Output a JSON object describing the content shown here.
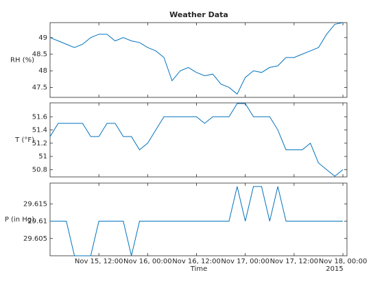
{
  "chart_data": {
    "type": "stackedline",
    "title": "Weather Data",
    "xlabel": "Time",
    "x_secondary_label": "2015",
    "x": [
      "2015-11-15 00:00",
      "2015-11-15 02:00",
      "2015-11-15 04:00",
      "2015-11-15 06:00",
      "2015-11-15 08:00",
      "2015-11-15 10:00",
      "2015-11-15 12:00",
      "2015-11-15 14:00",
      "2015-11-15 16:00",
      "2015-11-15 18:00",
      "2015-11-15 20:00",
      "2015-11-15 22:00",
      "2015-11-16 00:00",
      "2015-11-16 02:00",
      "2015-11-16 04:00",
      "2015-11-16 06:00",
      "2015-11-16 08:00",
      "2015-11-16 10:00",
      "2015-11-16 12:00",
      "2015-11-16 14:00",
      "2015-11-16 16:00",
      "2015-11-16 18:00",
      "2015-11-16 20:00",
      "2015-11-16 22:00",
      "2015-11-17 00:00",
      "2015-11-17 02:00",
      "2015-11-17 04:00",
      "2015-11-17 06:00",
      "2015-11-17 08:00",
      "2015-11-17 10:00",
      "2015-11-17 12:00",
      "2015-11-17 14:00",
      "2015-11-17 16:00",
      "2015-11-17 18:00",
      "2015-11-17 20:00",
      "2015-11-17 22:00",
      "2015-11-18 00:00"
    ],
    "xlim": [
      "2015-11-15 00:00",
      "2015-11-18 01:00"
    ],
    "xticks": [
      {
        "value": "2015-11-15 12:00",
        "label": "Nov 15, 12:00"
      },
      {
        "value": "2015-11-16 00:00",
        "label": "Nov 16, 00:00"
      },
      {
        "value": "2015-11-16 12:00",
        "label": "Nov 16, 12:00"
      },
      {
        "value": "2015-11-17 00:00",
        "label": "Nov 17, 00:00"
      },
      {
        "value": "2015-11-17 12:00",
        "label": "Nov 17, 12:00"
      },
      {
        "value": "2015-11-18 00:00",
        "label": "Nov 18, 00:00"
      }
    ],
    "series": [
      {
        "name": "RH (%)",
        "color": "#0072bd",
        "ylim": [
          47.2,
          49.45
        ],
        "yticks": [
          47.5,
          48,
          48.5,
          49
        ],
        "values": [
          49.0,
          48.9,
          48.8,
          48.7,
          48.8,
          49.0,
          49.1,
          49.1,
          48.9,
          49.0,
          48.9,
          48.85,
          48.7,
          48.6,
          48.4,
          47.7,
          48.0,
          48.1,
          47.95,
          47.85,
          47.9,
          47.6,
          47.5,
          47.3,
          47.8,
          48.0,
          47.95,
          48.1,
          48.15,
          48.4,
          48.4,
          48.5,
          48.6,
          48.7,
          49.1,
          49.4,
          49.45
        ]
      },
      {
        "name": "T (°F)",
        "color": "#0072bd",
        "ylim": [
          50.69,
          51.81
        ],
        "yticks": [
          50.8,
          51,
          51.2,
          51.4,
          51.6
        ],
        "values": [
          51.3,
          51.5,
          51.5,
          51.5,
          51.5,
          51.3,
          51.3,
          51.5,
          51.5,
          51.3,
          51.3,
          51.1,
          51.2,
          51.4,
          51.6,
          51.6,
          51.6,
          51.6,
          51.6,
          51.5,
          51.6,
          51.6,
          51.6,
          51.8,
          51.8,
          51.6,
          51.6,
          51.6,
          51.4,
          51.1,
          51.1,
          51.1,
          51.2,
          50.9,
          50.8,
          50.7,
          50.8
        ]
      },
      {
        "name": "P (in Hg)",
        "color": "#0072bd",
        "ylim": [
          29.6,
          29.621
        ],
        "yticks": [
          29.605,
          29.61,
          29.615
        ],
        "values": [
          29.61,
          29.61,
          29.61,
          29.6,
          29.6,
          29.6,
          29.61,
          29.61,
          29.61,
          29.61,
          29.6,
          29.61,
          29.61,
          29.61,
          29.61,
          29.61,
          29.61,
          29.61,
          29.61,
          29.61,
          29.61,
          29.61,
          29.61,
          29.62,
          29.61,
          29.62,
          29.62,
          29.61,
          29.62,
          29.61,
          29.61,
          29.61,
          29.61,
          29.61,
          29.61,
          29.61,
          29.61
        ]
      }
    ]
  }
}
